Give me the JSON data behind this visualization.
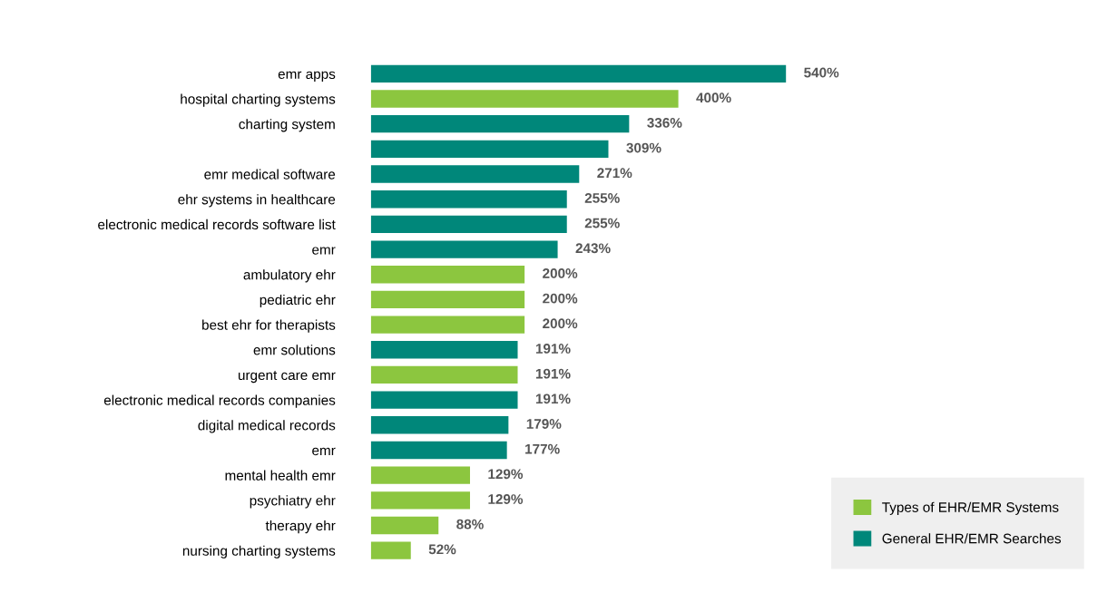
{
  "chart_data": {
    "type": "bar",
    "orientation": "horizontal",
    "categories": [
      "emr apps",
      "hospital charting systems",
      "charting system",
      null,
      "emr medical software",
      "ehr systems in healthcare",
      "electronic medical records software list",
      "emr",
      "ambulatory ehr",
      "pediatric ehr",
      "best ehr for therapists",
      "emr solutions",
      "urgent care emr",
      "electronic medical records companies",
      "digital medical records",
      "emr",
      "mental health emr",
      "psychiatry ehr",
      "therapy ehr",
      "nursing charting systems"
    ],
    "series": [
      {
        "name": "Types of EHR/EMR Systems",
        "color": "#8cc63f",
        "values": [
          null,
          400,
          null,
          null,
          null,
          null,
          null,
          null,
          200,
          200,
          200,
          null,
          191,
          null,
          null,
          null,
          129,
          129,
          88,
          52
        ],
        "value_labels": [
          null,
          "400%",
          null,
          null,
          null,
          null,
          null,
          null,
          "200%",
          "200%",
          "200%",
          null,
          "191%",
          null,
          null,
          null,
          "129%",
          "129%",
          "88%",
          "52%"
        ]
      },
      {
        "name": "General EHR/EMR Searches",
        "color": "#00877a",
        "values": [
          540,
          null,
          336,
          309,
          271,
          255,
          255,
          243,
          null,
          null,
          null,
          191,
          null,
          191,
          179,
          177,
          null,
          null,
          null,
          null
        ],
        "value_labels": [
          "540%",
          null,
          "336%",
          "309%",
          "271%",
          "255%",
          "255%",
          "243%",
          null,
          null,
          null,
          "191%",
          null,
          "191%",
          "179%",
          "177%",
          null,
          null,
          null,
          null
        ]
      }
    ],
    "legend": "bottom right",
    "grid": false
  }
}
